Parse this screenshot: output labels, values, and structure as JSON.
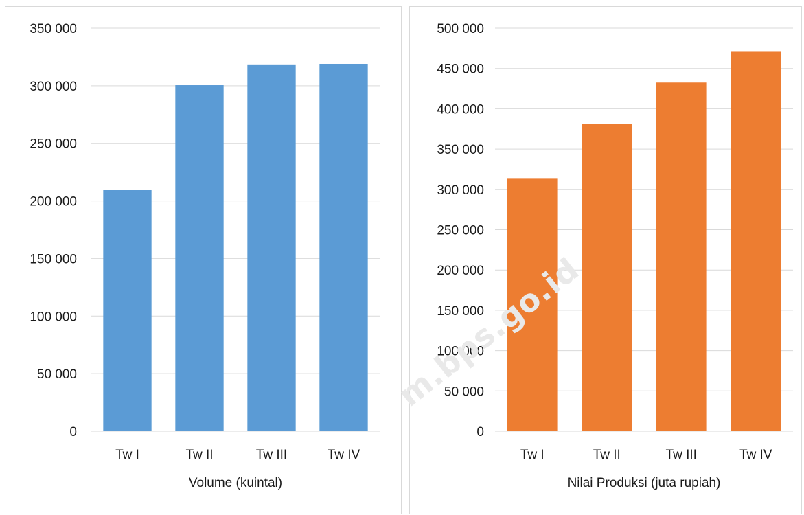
{
  "watermark": "m.bps.go.id",
  "chart_data": [
    {
      "type": "bar",
      "categories": [
        "Tw I",
        "Tw II",
        "Tw III",
        "Tw IV"
      ],
      "series": [
        {
          "values": [
            209500,
            300500,
            318500,
            319000
          ]
        }
      ],
      "xlabel": "Volume (kuintal)",
      "ylabel": "",
      "ylim": [
        0,
        350000
      ],
      "yticks": [
        0,
        50000,
        100000,
        150000,
        200000,
        250000,
        300000,
        350000
      ],
      "ytick_labels": [
        "0",
        "50 000",
        "100 000",
        "150 000",
        "200 000",
        "250 000",
        "300 000",
        "350 000"
      ],
      "grid": true,
      "color": "#5b9bd5"
    },
    {
      "type": "bar",
      "categories": [
        "Tw I",
        "Tw II",
        "Tw III",
        "Tw IV"
      ],
      "series": [
        {
          "values": [
            314000,
            381000,
            432500,
            471500
          ]
        }
      ],
      "xlabel": "Nilai Produksi (juta rupiah)",
      "ylabel": "",
      "ylim": [
        0,
        500000
      ],
      "yticks": [
        0,
        50000,
        100000,
        150000,
        200000,
        250000,
        300000,
        350000,
        400000,
        450000,
        500000
      ],
      "ytick_labels": [
        "0",
        "50 000",
        "100 000",
        "150 000",
        "200 000",
        "250 000",
        "300 000",
        "350 000",
        "400 000",
        "450 000",
        "500 000"
      ],
      "grid": true,
      "color": "#ed7d31"
    }
  ]
}
